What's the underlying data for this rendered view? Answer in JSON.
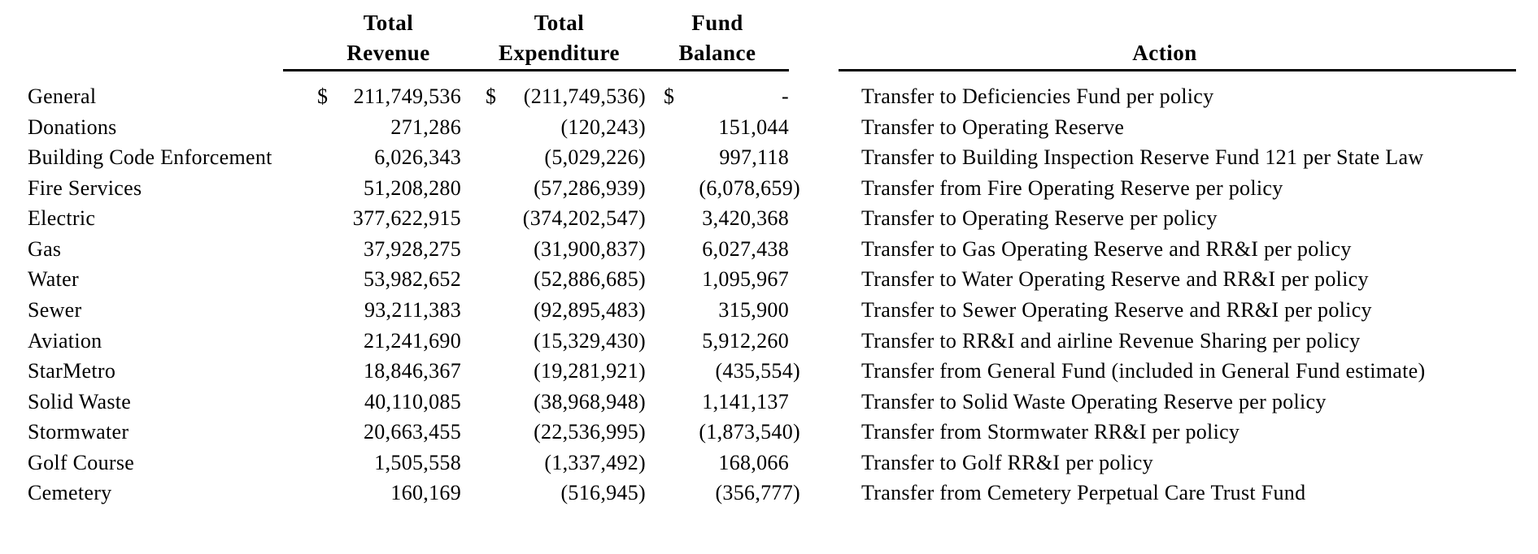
{
  "document": {
    "background_color": "#ffffff",
    "text_color": "#000000"
  },
  "table": {
    "currency_symbol": "$",
    "headers": {
      "revenue": [
        "Total",
        "Revenue"
      ],
      "expenditure": [
        "Total",
        "Expenditure"
      ],
      "balance": [
        "Fund",
        "Balance"
      ],
      "action": "Action"
    },
    "rows": [
      {
        "fund": "General",
        "revenue_prefix": "$",
        "revenue": "211,749,536",
        "expenditure_prefix": "$",
        "expenditure": "(211,749,536)",
        "balance_prefix": "$",
        "balance": "-",
        "action": "Transfer to Deficiencies Fund per policy"
      },
      {
        "fund": "Donations",
        "revenue": "271,286",
        "expenditure": "(120,243)",
        "balance": "151,044",
        "action": "Transfer to Operating Reserve"
      },
      {
        "fund": "Building Code Enforcement",
        "revenue": "6,026,343",
        "expenditure": "(5,029,226)",
        "balance": "997,118",
        "action": "Transfer to Building Inspection Reserve Fund 121 per State Law"
      },
      {
        "fund": "Fire Services",
        "revenue": "51,208,280",
        "expenditure": "(57,286,939)",
        "balance": "(6,078,659)",
        "action": "Transfer from Fire Operating Reserve per policy"
      },
      {
        "fund": "Electric",
        "revenue": "377,622,915",
        "expenditure": "(374,202,547)",
        "balance": "3,420,368",
        "action": "Transfer to Operating Reserve per policy"
      },
      {
        "fund": "Gas",
        "revenue": "37,928,275",
        "expenditure": "(31,900,837)",
        "balance": "6,027,438",
        "action": "Transfer to Gas Operating Reserve and RR&I per policy"
      },
      {
        "fund": "Water",
        "revenue": "53,982,652",
        "expenditure": "(52,886,685)",
        "balance": "1,095,967",
        "action": "Transfer to Water Operating Reserve and RR&I per policy"
      },
      {
        "fund": "Sewer",
        "revenue": "93,211,383",
        "expenditure": "(92,895,483)",
        "balance": "315,900",
        "action": "Transfer to Sewer Operating Reserve and RR&I per policy"
      },
      {
        "fund": "Aviation",
        "revenue": "21,241,690",
        "expenditure": "(15,329,430)",
        "balance": "5,912,260",
        "action": "Transfer to RR&I and airline Revenue Sharing per policy"
      },
      {
        "fund": "StarMetro",
        "revenue": "18,846,367",
        "expenditure": "(19,281,921)",
        "balance": "(435,554)",
        "action": "Transfer from General Fund (included in General Fund estimate)"
      },
      {
        "fund": "Solid Waste",
        "revenue": "40,110,085",
        "expenditure": "(38,968,948)",
        "balance": "1,141,137",
        "action": "Transfer to Solid Waste Operating Reserve per policy"
      },
      {
        "fund": "Stormwater",
        "revenue": "20,663,455",
        "expenditure": "(22,536,995)",
        "balance": "(1,873,540)",
        "action": "Transfer from Stormwater RR&I per policy"
      },
      {
        "fund": "Golf Course",
        "revenue": "1,505,558",
        "expenditure": "(1,337,492)",
        "balance": "168,066",
        "action": "Transfer to Golf RR&I per policy"
      },
      {
        "fund": "Cemetery",
        "revenue": "160,169",
        "expenditure": "(516,945)",
        "balance": "(356,777)",
        "action": "Transfer from Cemetery Perpetual Care Trust Fund"
      }
    ]
  }
}
